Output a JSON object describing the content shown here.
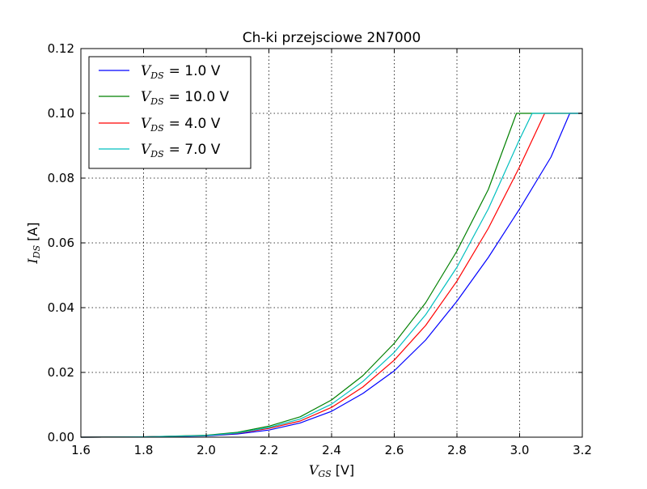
{
  "chart_data": {
    "type": "line",
    "title": "Ch-ki przejsciowe 2N7000",
    "xlabel": {
      "symbol": "V",
      "sub": "GS",
      "unit": "[V]"
    },
    "ylabel": {
      "symbol": "I",
      "sub": "DS",
      "unit": "[A]"
    },
    "xlim": [
      1.6,
      3.2
    ],
    "ylim": [
      0.0,
      0.12
    ],
    "xticks": [
      "1.6",
      "1.8",
      "2.0",
      "2.2",
      "2.4",
      "2.6",
      "2.8",
      "3.0",
      "3.2"
    ],
    "yticks": [
      "0.00",
      "0.02",
      "0.04",
      "0.06",
      "0.08",
      "0.10",
      "0.12"
    ],
    "grid": true,
    "legend_placement": "top-left",
    "legend_entries": [
      {
        "sym": "V",
        "sub": "DS",
        "text": "= 1.0 V",
        "color": "#0000ff"
      },
      {
        "sym": "V",
        "sub": "DS",
        "text": "= 10.0 V",
        "color": "#008000"
      },
      {
        "sym": "V",
        "sub": "DS",
        "text": "= 4.0 V",
        "color": "#ff0000"
      },
      {
        "sym": "V",
        "sub": "DS",
        "text": "= 7.0 V",
        "color": "#00bfbf"
      }
    ],
    "series": [
      {
        "color": "#0000ff",
        "x": [
          1.6,
          1.8,
          2.0,
          2.1,
          2.2,
          2.3,
          2.4,
          2.5,
          2.6,
          2.7,
          2.8,
          2.9,
          3.0,
          3.1,
          3.16,
          3.2
        ],
        "y": [
          0.0,
          0.0001,
          0.0004,
          0.001,
          0.0022,
          0.0044,
          0.008,
          0.0135,
          0.0205,
          0.03,
          0.042,
          0.0555,
          0.0705,
          0.0865,
          0.1,
          0.1
        ]
      },
      {
        "color": "#008000",
        "x": [
          1.6,
          1.8,
          2.0,
          2.1,
          2.2,
          2.3,
          2.4,
          2.5,
          2.6,
          2.7,
          2.8,
          2.9,
          2.99,
          3.1,
          3.2
        ],
        "y": [
          0.0,
          0.0001,
          0.0006,
          0.0015,
          0.0034,
          0.0063,
          0.0115,
          0.019,
          0.029,
          0.0415,
          0.0575,
          0.0765,
          0.1,
          0.1,
          0.1
        ]
      },
      {
        "color": "#ff0000",
        "x": [
          1.6,
          1.8,
          2.0,
          2.1,
          2.2,
          2.3,
          2.4,
          2.5,
          2.6,
          2.7,
          2.8,
          2.9,
          3.0,
          3.08,
          3.2
        ],
        "y": [
          0.0,
          0.0001,
          0.0005,
          0.0012,
          0.0027,
          0.005,
          0.0092,
          0.0155,
          0.0238,
          0.0345,
          0.0482,
          0.0645,
          0.0835,
          0.1,
          0.1
        ]
      },
      {
        "color": "#00bfbf",
        "x": [
          1.6,
          1.8,
          2.0,
          2.1,
          2.2,
          2.3,
          2.4,
          2.5,
          2.6,
          2.7,
          2.8,
          2.9,
          3.0,
          3.04,
          3.2
        ],
        "y": [
          0.0,
          0.0001,
          0.0005,
          0.0013,
          0.003,
          0.0056,
          0.0102,
          0.0172,
          0.0262,
          0.0378,
          0.0525,
          0.0705,
          0.092,
          0.1,
          0.1
        ]
      }
    ]
  }
}
